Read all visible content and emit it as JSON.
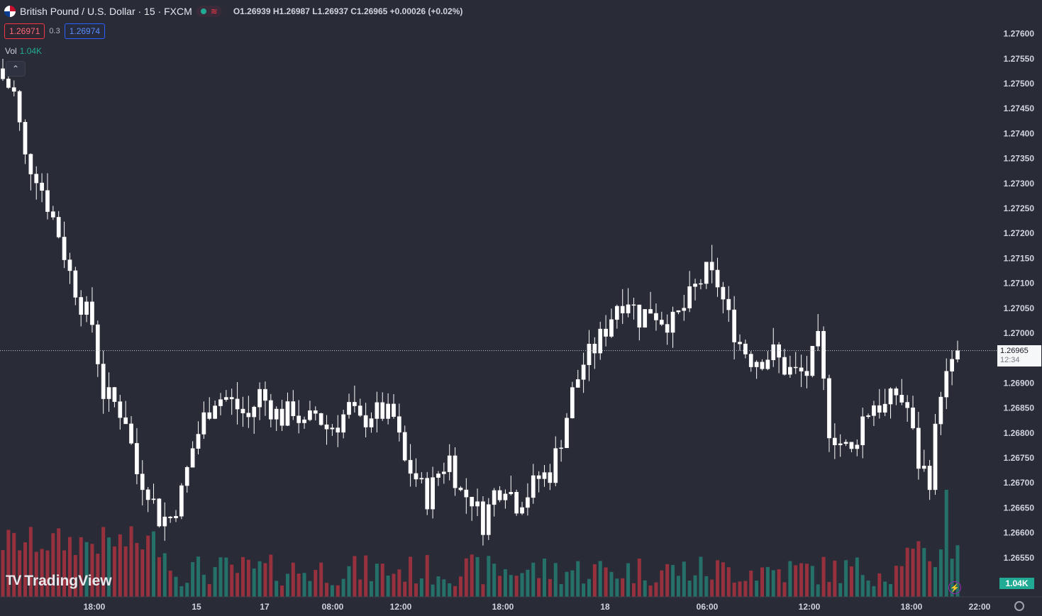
{
  "header": {
    "symbol": "British Pound / U.S. Dollar · 15 · FXCM",
    "ohlc": "O1.26939 H1.26987 L1.26937 C1.26965 +0.00026 (+0.02%)",
    "bid": "1.26971",
    "spread": "0.3",
    "ask": "1.26974",
    "vol_label": "Vol",
    "vol_value": "1.04K",
    "collapse_icon": "chevron-up-icon"
  },
  "logo": "TradingView",
  "current_price": "1.26965",
  "countdown": "12:34",
  "volume_label": "1.04K",
  "colors": {
    "background": "#292b36",
    "candle": "#ffffff",
    "vol_up": "#22ab94",
    "vol_down": "#f23645",
    "text": "#d1d4dc"
  },
  "chart_data": {
    "type": "candlestick",
    "title": "British Pound / U.S. Dollar · 15 · FXCM",
    "y_axis": {
      "min": 1.265,
      "max": 1.27625,
      "ticks": [
        "1.27600",
        "1.27550",
        "1.27500",
        "1.27450",
        "1.27400",
        "1.27350",
        "1.27300",
        "1.27250",
        "1.27200",
        "1.27150",
        "1.27100",
        "1.27050",
        "1.27000",
        "1.26900",
        "1.26850",
        "1.26800",
        "1.26750",
        "1.26700",
        "1.26650",
        "1.26600",
        "1.26550"
      ]
    },
    "x_axis": {
      "ticks": [
        "18:00",
        "15",
        "17",
        "08:00",
        "12:00",
        "18:00",
        "18",
        "06:00",
        "12:00",
        "18:00",
        "22:00"
      ]
    },
    "close_path": [
      [
        0,
        1.2751
      ],
      [
        2,
        1.2748
      ],
      [
        4,
        1.2735
      ],
      [
        6,
        1.2732
      ],
      [
        8,
        1.2726
      ],
      [
        10,
        1.272
      ],
      [
        12,
        1.2712
      ],
      [
        14,
        1.2706
      ],
      [
        16,
        1.2702
      ],
      [
        18,
        1.2688
      ],
      [
        20,
        1.2686
      ],
      [
        22,
        1.2683
      ],
      [
        24,
        1.2672
      ],
      [
        26,
        1.2669
      ],
      [
        28,
        1.2663
      ],
      [
        30,
        1.2663
      ],
      [
        32,
        1.2668
      ],
      [
        34,
        1.2677
      ],
      [
        36,
        1.2683
      ],
      [
        38,
        1.2687
      ],
      [
        40,
        1.2687
      ],
      [
        42,
        1.2685
      ],
      [
        44,
        1.2683
      ],
      [
        46,
        1.2688
      ],
      [
        48,
        1.2685
      ],
      [
        50,
        1.2683
      ],
      [
        52,
        1.2685
      ],
      [
        54,
        1.2681
      ],
      [
        56,
        1.2684
      ],
      [
        58,
        1.2681
      ],
      [
        60,
        1.2682
      ],
      [
        62,
        1.2685
      ],
      [
        64,
        1.2682
      ],
      [
        66,
        1.2684
      ],
      [
        68,
        1.2684
      ],
      [
        70,
        1.2683
      ],
      [
        72,
        1.2674
      ],
      [
        74,
        1.2671
      ],
      [
        76,
        1.2667
      ],
      [
        78,
        1.2672
      ],
      [
        80,
        1.2675
      ],
      [
        82,
        1.2668
      ],
      [
        84,
        1.2667
      ],
      [
        86,
        1.2662
      ],
      [
        88,
        1.2668
      ],
      [
        90,
        1.267
      ],
      [
        92,
        1.2666
      ],
      [
        94,
        1.2668
      ],
      [
        96,
        1.2671
      ],
      [
        98,
        1.2672
      ],
      [
        100,
        1.2679
      ],
      [
        102,
        1.2688
      ],
      [
        104,
        1.2694
      ],
      [
        106,
        1.2697
      ],
      [
        108,
        1.2701
      ],
      [
        110,
        1.2706
      ],
      [
        112,
        1.2707
      ],
      [
        114,
        1.2703
      ],
      [
        116,
        1.2705
      ],
      [
        118,
        1.2703
      ],
      [
        120,
        1.2702
      ],
      [
        122,
        1.2705
      ],
      [
        124,
        1.2709
      ],
      [
        126,
        1.2712
      ],
      [
        128,
        1.271
      ],
      [
        130,
        1.2703
      ],
      [
        132,
        1.2698
      ],
      [
        134,
        1.2695
      ],
      [
        136,
        1.2695
      ],
      [
        138,
        1.2696
      ],
      [
        140,
        1.2693
      ],
      [
        142,
        1.2692
      ],
      [
        144,
        1.2692
      ],
      [
        146,
        1.2698
      ],
      [
        148,
        1.2681
      ],
      [
        150,
        1.2678
      ],
      [
        152,
        1.2676
      ],
      [
        154,
        1.2683
      ],
      [
        156,
        1.2686
      ],
      [
        158,
        1.2685
      ],
      [
        160,
        1.2688
      ],
      [
        162,
        1.2685
      ],
      [
        164,
        1.2674
      ],
      [
        166,
        1.2671
      ],
      [
        168,
        1.2689
      ],
      [
        170,
        1.2693
      ],
      [
        171,
        1.26965
      ]
    ],
    "last_close": 1.26965,
    "volume_axis_label": "1.04K"
  }
}
